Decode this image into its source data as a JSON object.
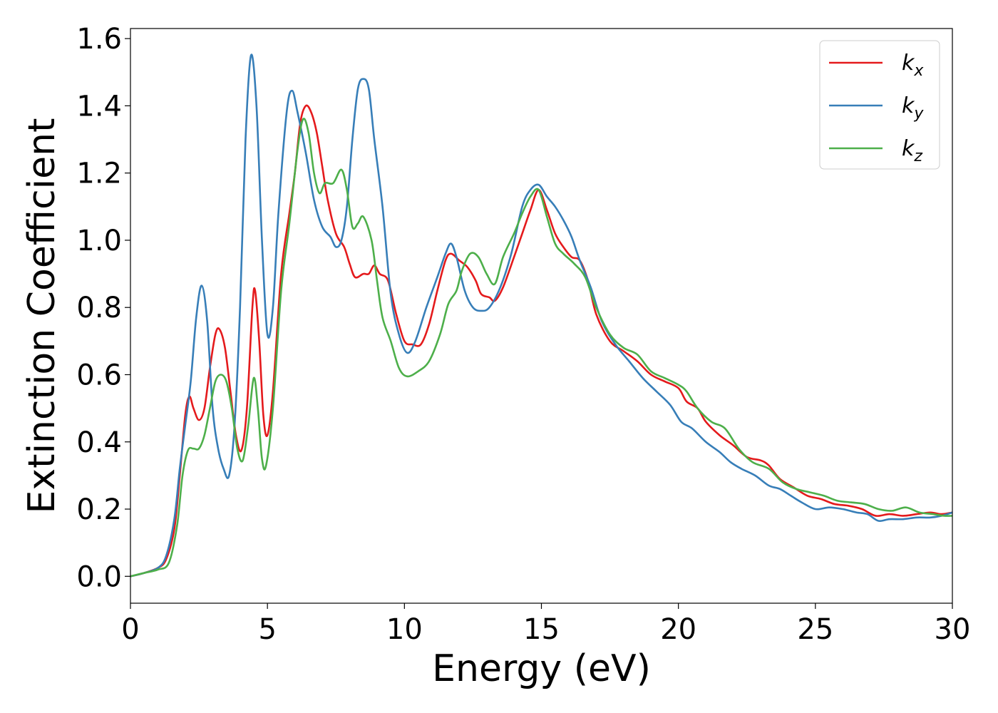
{
  "chart_data": {
    "type": "line",
    "xlabel": "Energy (eV)",
    "ylabel": "Extinction Coefficient",
    "xlim": [
      0,
      30
    ],
    "ylim": [
      -0.08,
      1.63
    ],
    "xticks": [
      0,
      5,
      10,
      15,
      20,
      25,
      30
    ],
    "yticks": [
      0.0,
      0.2,
      0.4,
      0.6,
      0.8,
      1.0,
      1.2,
      1.4,
      1.6
    ],
    "xtick_labels": [
      "0",
      "5",
      "10",
      "15",
      "20",
      "25",
      "30"
    ],
    "ytick_labels": [
      "0.0",
      "0.2",
      "0.4",
      "0.6",
      "0.8",
      "1.0",
      "1.2",
      "1.4",
      "1.6"
    ],
    "grid": false,
    "legend_position": "top-right",
    "series": [
      {
        "name": "k",
        "subscript": "x",
        "color": "#e41a1c",
        "points": [
          [
            0,
            0
          ],
          [
            0.5,
            0.01
          ],
          [
            1.0,
            0.025
          ],
          [
            1.3,
            0.05
          ],
          [
            1.6,
            0.14
          ],
          [
            1.8,
            0.3
          ],
          [
            2.0,
            0.48
          ],
          [
            2.15,
            0.535
          ],
          [
            2.3,
            0.5
          ],
          [
            2.5,
            0.465
          ],
          [
            2.7,
            0.5
          ],
          [
            2.9,
            0.62
          ],
          [
            3.1,
            0.72
          ],
          [
            3.25,
            0.735
          ],
          [
            3.45,
            0.68
          ],
          [
            3.65,
            0.55
          ],
          [
            3.85,
            0.42
          ],
          [
            4.05,
            0.375
          ],
          [
            4.25,
            0.5
          ],
          [
            4.45,
            0.8
          ],
          [
            4.55,
            0.85
          ],
          [
            4.7,
            0.7
          ],
          [
            4.85,
            0.48
          ],
          [
            5.0,
            0.42
          ],
          [
            5.2,
            0.55
          ],
          [
            5.5,
            0.9
          ],
          [
            5.8,
            1.08
          ],
          [
            6.0,
            1.2
          ],
          [
            6.2,
            1.35
          ],
          [
            6.4,
            1.4
          ],
          [
            6.6,
            1.38
          ],
          [
            6.8,
            1.32
          ],
          [
            7.0,
            1.22
          ],
          [
            7.2,
            1.12
          ],
          [
            7.5,
            1.02
          ],
          [
            7.8,
            0.98
          ],
          [
            8.0,
            0.93
          ],
          [
            8.2,
            0.89
          ],
          [
            8.5,
            0.9
          ],
          [
            8.7,
            0.9
          ],
          [
            8.9,
            0.925
          ],
          [
            9.1,
            0.9
          ],
          [
            9.4,
            0.88
          ],
          [
            9.7,
            0.78
          ],
          [
            10.0,
            0.7
          ],
          [
            10.3,
            0.69
          ],
          [
            10.6,
            0.69
          ],
          [
            10.9,
            0.75
          ],
          [
            11.2,
            0.85
          ],
          [
            11.5,
            0.94
          ],
          [
            11.7,
            0.96
          ],
          [
            12.0,
            0.94
          ],
          [
            12.3,
            0.92
          ],
          [
            12.6,
            0.88
          ],
          [
            12.8,
            0.84
          ],
          [
            13.1,
            0.83
          ],
          [
            13.3,
            0.82
          ],
          [
            13.6,
            0.86
          ],
          [
            14.0,
            0.95
          ],
          [
            14.3,
            1.02
          ],
          [
            14.6,
            1.09
          ],
          [
            14.9,
            1.15
          ],
          [
            15.2,
            1.09
          ],
          [
            15.5,
            1.02
          ],
          [
            15.8,
            0.98
          ],
          [
            16.1,
            0.95
          ],
          [
            16.4,
            0.94
          ],
          [
            16.7,
            0.88
          ],
          [
            17.0,
            0.78
          ],
          [
            17.5,
            0.7
          ],
          [
            18.0,
            0.67
          ],
          [
            18.5,
            0.64
          ],
          [
            19.0,
            0.6
          ],
          [
            19.5,
            0.58
          ],
          [
            20.0,
            0.56
          ],
          [
            20.3,
            0.52
          ],
          [
            20.7,
            0.5
          ],
          [
            21.0,
            0.46
          ],
          [
            21.5,
            0.42
          ],
          [
            22.0,
            0.39
          ],
          [
            22.5,
            0.355
          ],
          [
            23.0,
            0.345
          ],
          [
            23.3,
            0.33
          ],
          [
            23.7,
            0.29
          ],
          [
            24.2,
            0.265
          ],
          [
            24.7,
            0.24
          ],
          [
            25.2,
            0.23
          ],
          [
            25.7,
            0.215
          ],
          [
            26.2,
            0.21
          ],
          [
            26.7,
            0.2
          ],
          [
            27.2,
            0.18
          ],
          [
            27.7,
            0.185
          ],
          [
            28.2,
            0.18
          ],
          [
            28.7,
            0.185
          ],
          [
            29.2,
            0.19
          ],
          [
            29.6,
            0.185
          ],
          [
            30,
            0.19
          ]
        ]
      },
      {
        "name": "k",
        "subscript": "y",
        "color": "#377eb8",
        "points": [
          [
            0,
            0
          ],
          [
            0.5,
            0.01
          ],
          [
            1.0,
            0.025
          ],
          [
            1.3,
            0.06
          ],
          [
            1.6,
            0.17
          ],
          [
            1.8,
            0.32
          ],
          [
            2.0,
            0.45
          ],
          [
            2.2,
            0.58
          ],
          [
            2.4,
            0.77
          ],
          [
            2.6,
            0.865
          ],
          [
            2.8,
            0.76
          ],
          [
            3.0,
            0.5
          ],
          [
            3.2,
            0.38
          ],
          [
            3.4,
            0.32
          ],
          [
            3.6,
            0.3
          ],
          [
            3.8,
            0.45
          ],
          [
            4.0,
            0.8
          ],
          [
            4.2,
            1.3
          ],
          [
            4.4,
            1.55
          ],
          [
            4.6,
            1.4
          ],
          [
            4.8,
            1.0
          ],
          [
            5.0,
            0.72
          ],
          [
            5.2,
            0.8
          ],
          [
            5.4,
            1.08
          ],
          [
            5.7,
            1.38
          ],
          [
            5.9,
            1.445
          ],
          [
            6.1,
            1.38
          ],
          [
            6.4,
            1.26
          ],
          [
            6.7,
            1.12
          ],
          [
            7.0,
            1.04
          ],
          [
            7.3,
            1.01
          ],
          [
            7.5,
            0.98
          ],
          [
            7.7,
            1.0
          ],
          [
            7.9,
            1.1
          ],
          [
            8.1,
            1.3
          ],
          [
            8.3,
            1.45
          ],
          [
            8.5,
            1.48
          ],
          [
            8.7,
            1.45
          ],
          [
            8.9,
            1.3
          ],
          [
            9.2,
            1.1
          ],
          [
            9.5,
            0.84
          ],
          [
            9.8,
            0.72
          ],
          [
            10.1,
            0.665
          ],
          [
            10.4,
            0.7
          ],
          [
            10.8,
            0.8
          ],
          [
            11.2,
            0.89
          ],
          [
            11.5,
            0.96
          ],
          [
            11.7,
            0.99
          ],
          [
            11.9,
            0.95
          ],
          [
            12.2,
            0.85
          ],
          [
            12.5,
            0.8
          ],
          [
            12.8,
            0.79
          ],
          [
            13.1,
            0.8
          ],
          [
            13.5,
            0.86
          ],
          [
            13.9,
            0.96
          ],
          [
            14.3,
            1.1
          ],
          [
            14.6,
            1.15
          ],
          [
            14.9,
            1.165
          ],
          [
            15.2,
            1.13
          ],
          [
            15.5,
            1.1
          ],
          [
            15.8,
            1.06
          ],
          [
            16.1,
            1.01
          ],
          [
            16.4,
            0.94
          ],
          [
            16.8,
            0.86
          ],
          [
            17.2,
            0.76
          ],
          [
            17.7,
            0.69
          ],
          [
            18.2,
            0.64
          ],
          [
            18.7,
            0.59
          ],
          [
            19.2,
            0.55
          ],
          [
            19.7,
            0.51
          ],
          [
            20.1,
            0.46
          ],
          [
            20.5,
            0.44
          ],
          [
            21.0,
            0.4
          ],
          [
            21.5,
            0.37
          ],
          [
            21.9,
            0.34
          ],
          [
            22.3,
            0.32
          ],
          [
            22.8,
            0.3
          ],
          [
            23.3,
            0.27
          ],
          [
            23.7,
            0.26
          ],
          [
            24.1,
            0.24
          ],
          [
            24.5,
            0.22
          ],
          [
            25.0,
            0.2
          ],
          [
            25.5,
            0.205
          ],
          [
            26.0,
            0.2
          ],
          [
            26.5,
            0.19
          ],
          [
            26.9,
            0.185
          ],
          [
            27.3,
            0.165
          ],
          [
            27.7,
            0.17
          ],
          [
            28.2,
            0.17
          ],
          [
            28.7,
            0.175
          ],
          [
            29.2,
            0.175
          ],
          [
            29.6,
            0.18
          ],
          [
            30,
            0.19
          ]
        ]
      },
      {
        "name": "k",
        "subscript": "z",
        "color": "#4daf4a",
        "points": [
          [
            0,
            0
          ],
          [
            0.5,
            0.01
          ],
          [
            1.0,
            0.02
          ],
          [
            1.4,
            0.04
          ],
          [
            1.7,
            0.15
          ],
          [
            1.9,
            0.3
          ],
          [
            2.1,
            0.375
          ],
          [
            2.3,
            0.38
          ],
          [
            2.5,
            0.38
          ],
          [
            2.7,
            0.42
          ],
          [
            2.9,
            0.5
          ],
          [
            3.1,
            0.58
          ],
          [
            3.3,
            0.6
          ],
          [
            3.5,
            0.58
          ],
          [
            3.7,
            0.5
          ],
          [
            3.9,
            0.38
          ],
          [
            4.1,
            0.345
          ],
          [
            4.3,
            0.45
          ],
          [
            4.5,
            0.59
          ],
          [
            4.65,
            0.5
          ],
          [
            4.8,
            0.35
          ],
          [
            4.95,
            0.33
          ],
          [
            5.2,
            0.5
          ],
          [
            5.5,
            0.85
          ],
          [
            5.8,
            1.05
          ],
          [
            6.1,
            1.27
          ],
          [
            6.3,
            1.36
          ],
          [
            6.5,
            1.32
          ],
          [
            6.7,
            1.2
          ],
          [
            6.9,
            1.14
          ],
          [
            7.1,
            1.17
          ],
          [
            7.4,
            1.17
          ],
          [
            7.7,
            1.21
          ],
          [
            7.9,
            1.15
          ],
          [
            8.1,
            1.04
          ],
          [
            8.3,
            1.05
          ],
          [
            8.5,
            1.07
          ],
          [
            8.8,
            1.0
          ],
          [
            9.0,
            0.88
          ],
          [
            9.2,
            0.77
          ],
          [
            9.5,
            0.7
          ],
          [
            9.8,
            0.62
          ],
          [
            10.1,
            0.595
          ],
          [
            10.5,
            0.61
          ],
          [
            10.9,
            0.64
          ],
          [
            11.3,
            0.72
          ],
          [
            11.6,
            0.81
          ],
          [
            11.9,
            0.85
          ],
          [
            12.1,
            0.91
          ],
          [
            12.4,
            0.96
          ],
          [
            12.7,
            0.95
          ],
          [
            13.0,
            0.9
          ],
          [
            13.3,
            0.87
          ],
          [
            13.6,
            0.95
          ],
          [
            14.0,
            1.02
          ],
          [
            14.3,
            1.08
          ],
          [
            14.6,
            1.13
          ],
          [
            14.9,
            1.15
          ],
          [
            15.2,
            1.07
          ],
          [
            15.5,
            0.99
          ],
          [
            15.8,
            0.96
          ],
          [
            16.2,
            0.93
          ],
          [
            16.6,
            0.89
          ],
          [
            17.0,
            0.8
          ],
          [
            17.5,
            0.72
          ],
          [
            18.0,
            0.68
          ],
          [
            18.5,
            0.66
          ],
          [
            19.0,
            0.61
          ],
          [
            19.5,
            0.59
          ],
          [
            20.0,
            0.57
          ],
          [
            20.3,
            0.55
          ],
          [
            20.7,
            0.5
          ],
          [
            21.2,
            0.46
          ],
          [
            21.7,
            0.44
          ],
          [
            22.2,
            0.38
          ],
          [
            22.7,
            0.34
          ],
          [
            23.3,
            0.32
          ],
          [
            23.8,
            0.28
          ],
          [
            24.3,
            0.26
          ],
          [
            24.8,
            0.25
          ],
          [
            25.3,
            0.24
          ],
          [
            25.8,
            0.225
          ],
          [
            26.3,
            0.22
          ],
          [
            26.8,
            0.215
          ],
          [
            27.3,
            0.2
          ],
          [
            27.8,
            0.195
          ],
          [
            28.3,
            0.205
          ],
          [
            28.8,
            0.19
          ],
          [
            29.3,
            0.185
          ],
          [
            29.7,
            0.18
          ],
          [
            30,
            0.18
          ]
        ]
      }
    ]
  }
}
